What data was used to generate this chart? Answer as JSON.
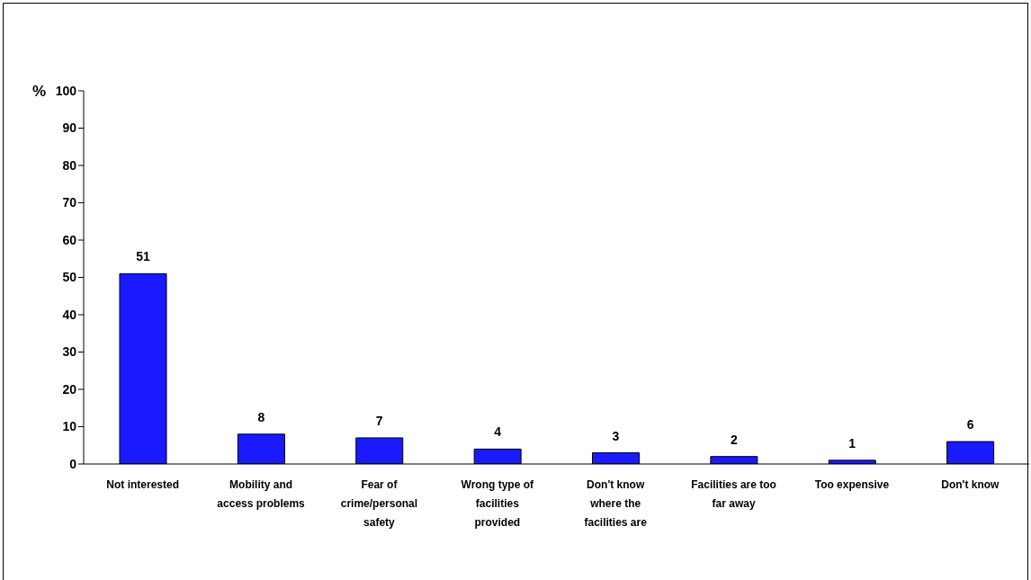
{
  "chart_data": {
    "type": "bar",
    "ylabel": "%",
    "categories": [
      "Not interested",
      "Mobility and access problems",
      "Fear of crime/personal safety",
      "Wrong type of facilities provided",
      "Don't know where the facilities are",
      "Facilities are too far away",
      "Too expensive",
      "Don't know"
    ],
    "values": [
      51,
      8,
      7,
      4,
      3,
      2,
      1,
      6
    ],
    "color": "#1a1aff",
    "ylim": [
      0,
      100
    ],
    "yticks": [
      0,
      10,
      20,
      30,
      40,
      50,
      60,
      70,
      80,
      90,
      100
    ],
    "data_labels": true,
    "grid": false
  }
}
